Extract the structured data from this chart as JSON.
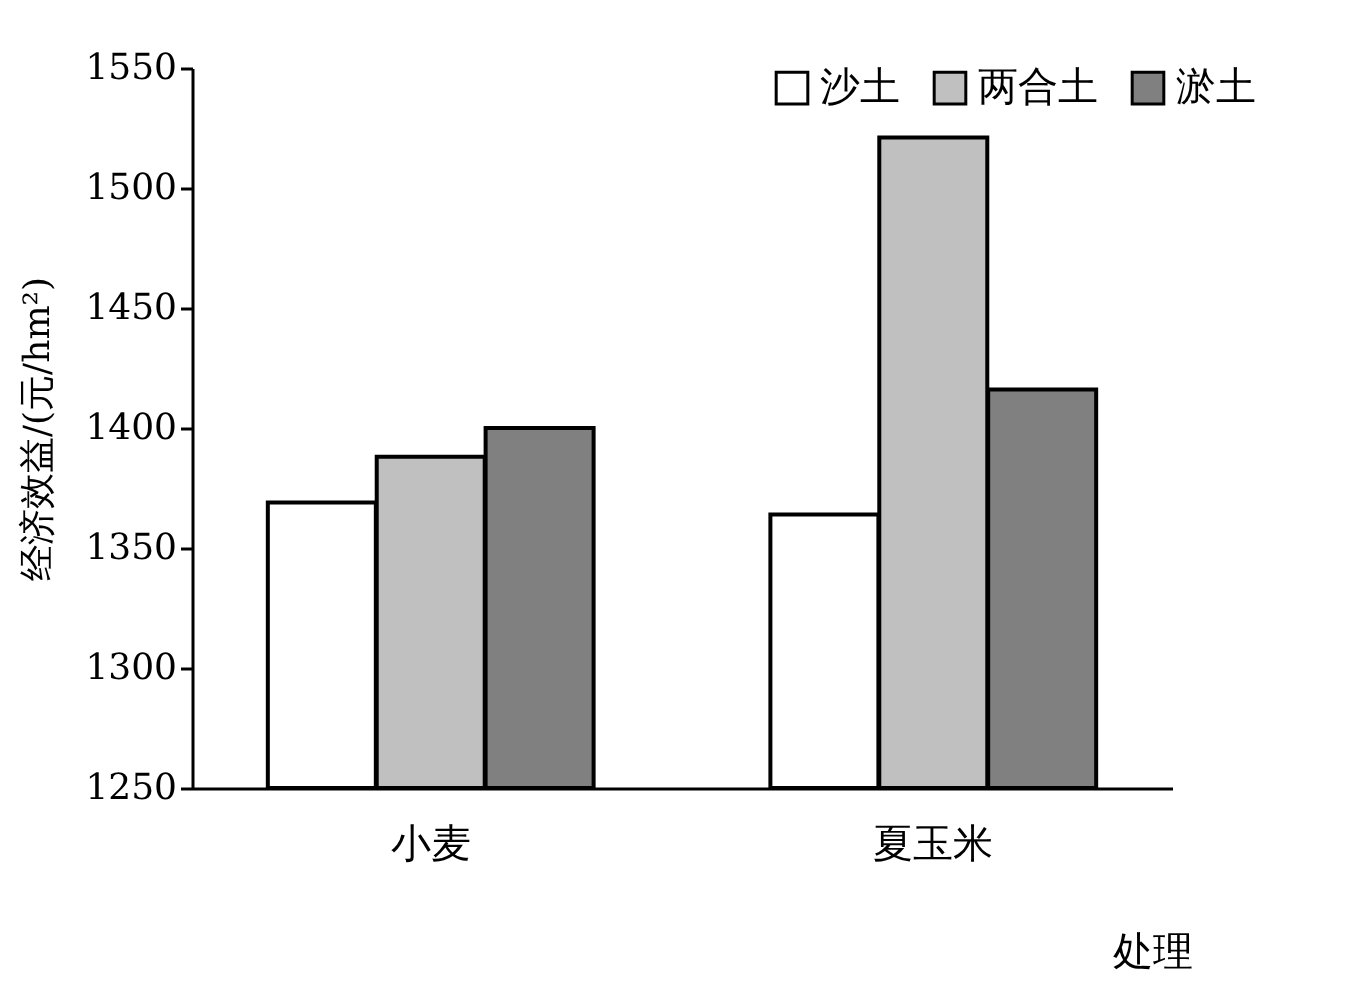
{
  "chart_data": {
    "type": "bar",
    "xlabel": "处理",
    "ylabel": "经济效益/(元/hm²)",
    "categories": [
      "小麦",
      "夏玉米"
    ],
    "series": [
      {
        "name": "沙土",
        "color": "#ffffff",
        "values": [
          1369,
          1364
        ]
      },
      {
        "name": "两合土",
        "color": "#c0c0c0",
        "values": [
          1388,
          1521
        ]
      },
      {
        "name": "淤土",
        "color": "#808080",
        "values": [
          1400,
          1416
        ]
      }
    ],
    "ylim": [
      1250,
      1550
    ],
    "yticks": [
      1250,
      1300,
      1350,
      1400,
      1450,
      1500,
      1550
    ],
    "grid": false,
    "legend": "top right"
  }
}
